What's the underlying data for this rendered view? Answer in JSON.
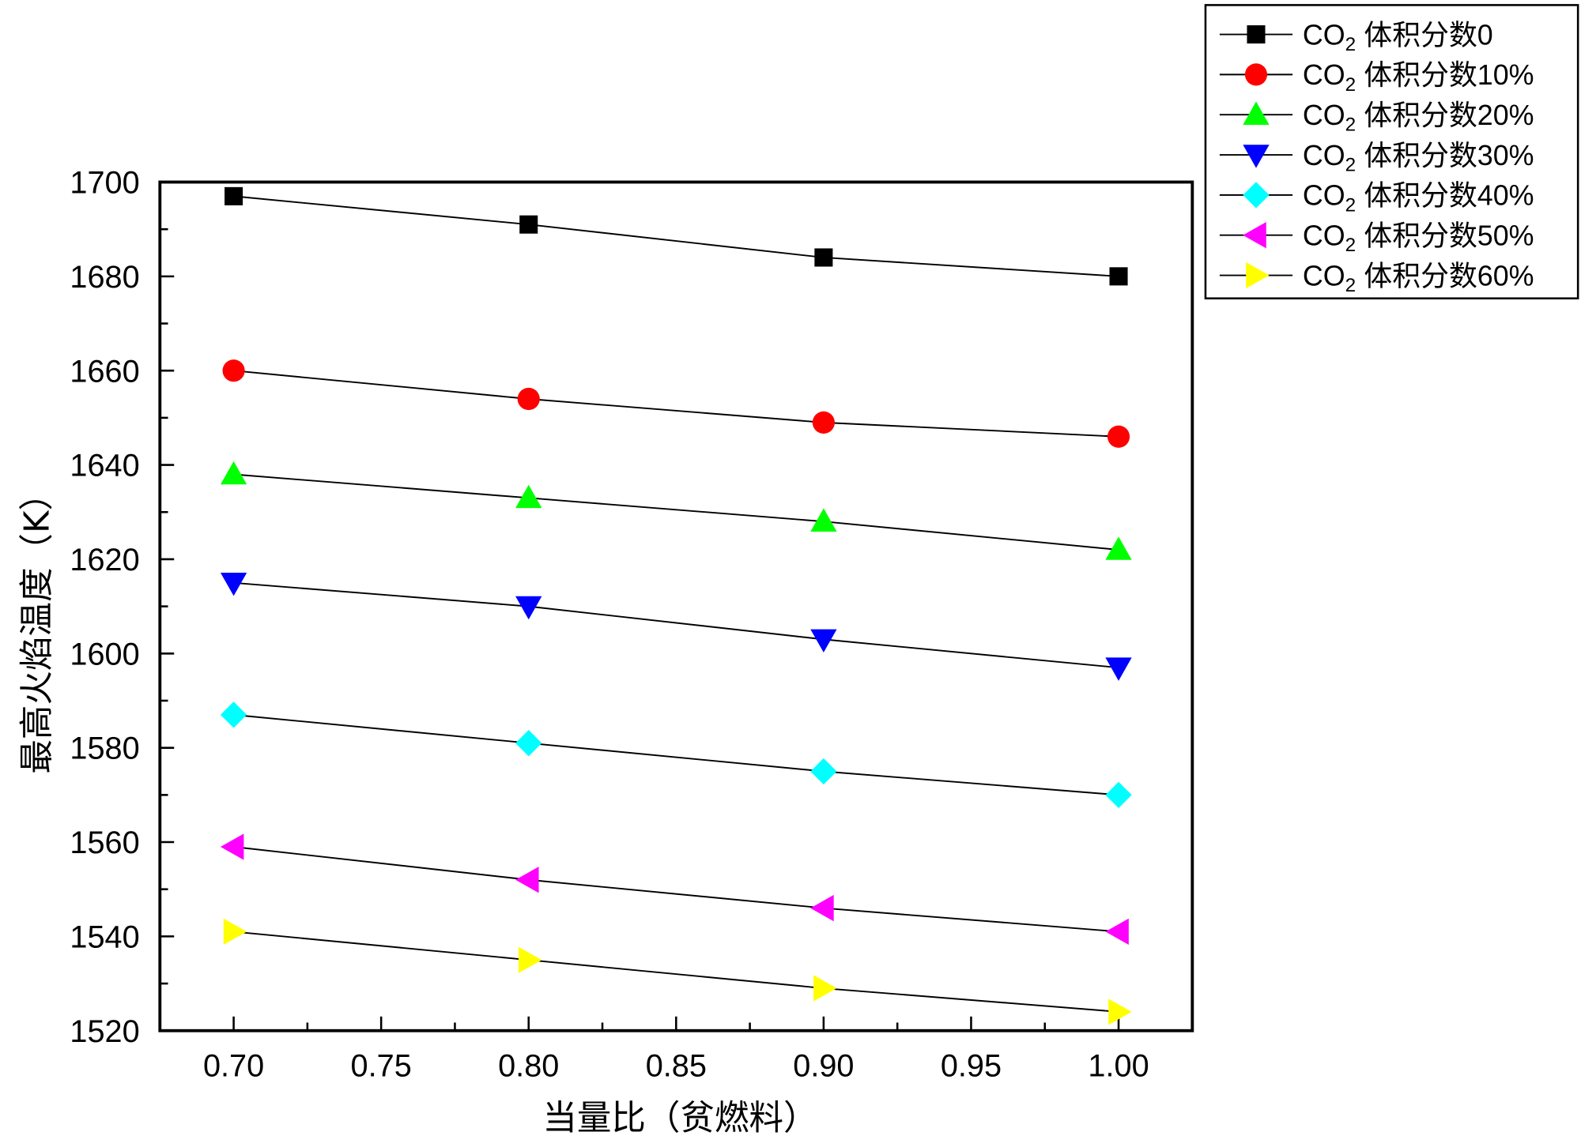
{
  "chart_data": {
    "type": "line",
    "title": "",
    "xlabel": "当量比（贫燃料）",
    "ylabel": "最高火焰温度（K）",
    "xlim": [
      0.675,
      1.025
    ],
    "ylim": [
      1520,
      1700
    ],
    "xticks": [
      "0.70",
      "0.75",
      "0.80",
      "0.85",
      "0.90",
      "0.95",
      "1.00"
    ],
    "yticks": [
      "1520",
      "1540",
      "1560",
      "1580",
      "1600",
      "1620",
      "1640",
      "1660",
      "1680",
      "1700"
    ],
    "grid": false,
    "legend_position": "top-right-outside",
    "x": [
      0.7,
      0.8,
      0.9,
      1.0
    ],
    "series": [
      {
        "name_main": "CO",
        "name_sub": "2",
        "name_rest": "体积分数0",
        "marker": "square",
        "color": "#000000",
        "values": [
          1697,
          1691,
          1684,
          1680
        ]
      },
      {
        "name_main": "CO",
        "name_sub": "2",
        "name_rest": "体积分数10%",
        "marker": "circle",
        "color": "#ff0000",
        "values": [
          1660,
          1654,
          1649,
          1646
        ]
      },
      {
        "name_main": "CO",
        "name_sub": "2",
        "name_rest": "体积分数20%",
        "marker": "triangle-up",
        "color": "#00ff00",
        "values": [
          1638,
          1633,
          1628,
          1622
        ]
      },
      {
        "name_main": "CO",
        "name_sub": "2",
        "name_rest": "体积分数30%",
        "marker": "triangle-down",
        "color": "#0000ff",
        "values": [
          1615,
          1610,
          1603,
          1597
        ]
      },
      {
        "name_main": "CO",
        "name_sub": "2",
        "name_rest": "体积分数40%",
        "marker": "diamond",
        "color": "#00ffff",
        "values": [
          1587,
          1581,
          1575,
          1570
        ]
      },
      {
        "name_main": "CO",
        "name_sub": "2",
        "name_rest": "体积分数50%",
        "marker": "triangle-left",
        "color": "#ff00ff",
        "values": [
          1559,
          1552,
          1546,
          1541
        ]
      },
      {
        "name_main": "CO",
        "name_sub": "2",
        "name_rest": "体积分数60%",
        "marker": "triangle-right",
        "color": "#ffff00",
        "values": [
          1541,
          1535,
          1529,
          1524
        ]
      }
    ]
  }
}
